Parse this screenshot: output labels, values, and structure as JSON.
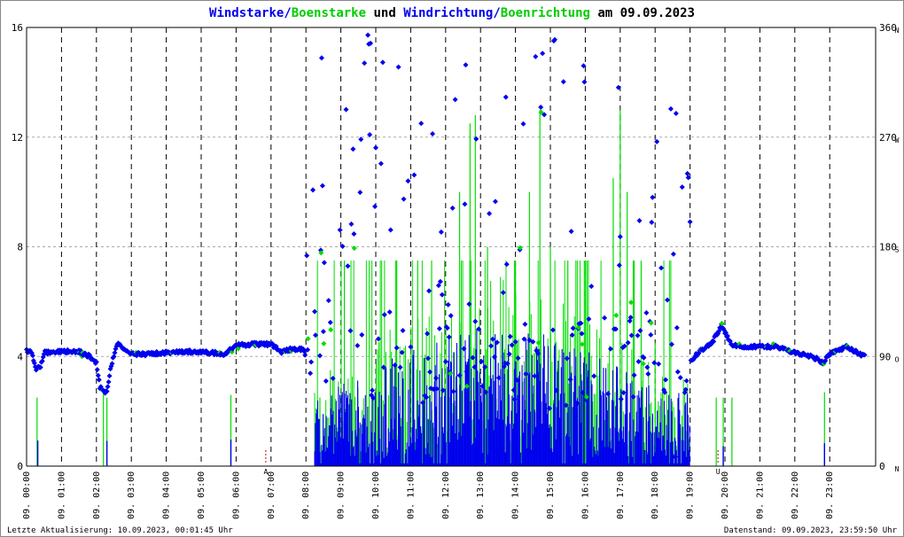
{
  "title": {
    "part1": "Windstarke",
    "slash1": "/",
    "part2": "Boenstarke",
    "part3": " und ",
    "part4": "Windrichtung",
    "slash2": "/",
    "part5": "Boenrichtung",
    "part6": " am 09.09.2023"
  },
  "footer": {
    "left": "Letzte Aktualisierung: 10.09.2023, 00:01:45 Uhr",
    "right": "Datenstand: 09.09.2023, 23:59:50 Uhr"
  },
  "colors": {
    "wind": "#0000ee",
    "gust": "#00dd00",
    "grid": "#000000",
    "marker": "#cc0000"
  },
  "chart_data": {
    "type": "scatter",
    "title": "Windstarke/Boenstarke und Windrichtung/Boenrichtung am 09.09.2023",
    "x_range_hours": [
      0,
      24
    ],
    "y_left_range": [
      0,
      16
    ],
    "y_left_ticks": [
      "0",
      "4",
      "8",
      "12",
      "16"
    ],
    "y_right_range": [
      0,
      360
    ],
    "y_right_ticks": [
      "0",
      "90",
      "180",
      "270",
      "360"
    ],
    "y_right_dir_labels": [
      "N",
      "O",
      "S",
      "W",
      "N"
    ],
    "x_tick_labels": [
      "09. 00:00",
      "09. 01:00",
      "09. 02:00",
      "09. 03:00",
      "09. 04:00",
      "09. 05:00",
      "09. 06:00",
      "09. 07:00",
      "09. 08:00",
      "09. 09:00",
      "09. 10:00",
      "09. 11:00",
      "09. 12:00",
      "09. 13:00",
      "09. 14:00",
      "09. 15:00",
      "09. 16:00",
      "09. 17:00",
      "09. 18:00",
      "09. 19:00",
      "09. 20:00",
      "09. 21:00",
      "09. 22:00",
      "09. 23:00"
    ],
    "event_markers": [
      {
        "hour": 6.85,
        "label": "A"
      },
      {
        "hour": 19.8,
        "label": "U"
      }
    ],
    "direction_profile": [
      [
        0.0,
        95
      ],
      [
        0.15,
        93
      ],
      [
        0.25,
        80
      ],
      [
        0.4,
        82
      ],
      [
        0.5,
        93
      ],
      [
        1.0,
        94
      ],
      [
        1.5,
        94
      ],
      [
        1.8,
        90
      ],
      [
        2.0,
        85
      ],
      [
        2.1,
        65
      ],
      [
        2.3,
        60
      ],
      [
        2.4,
        80
      ],
      [
        2.6,
        100
      ],
      [
        3.0,
        92
      ],
      [
        3.5,
        92
      ],
      [
        4.0,
        93
      ],
      [
        5.0,
        94
      ],
      [
        5.7,
        92
      ],
      [
        5.8,
        95
      ],
      [
        6.0,
        99
      ],
      [
        6.5,
        100
      ],
      [
        7.0,
        100
      ],
      [
        7.3,
        94
      ],
      [
        7.6,
        96
      ],
      [
        7.9,
        96
      ],
      [
        8.2,
        82
      ],
      [
        8.5,
        95
      ],
      [
        9.0,
        100
      ],
      [
        9.5,
        90
      ],
      [
        10.0,
        95
      ],
      [
        11.0,
        85
      ],
      [
        12.0,
        90
      ],
      [
        13.0,
        95
      ],
      [
        14.0,
        90
      ],
      [
        15.0,
        85
      ],
      [
        16.0,
        90
      ],
      [
        17.0,
        90
      ],
      [
        18.0,
        100
      ],
      [
        18.5,
        100
      ],
      [
        18.8,
        80
      ],
      [
        19.0,
        85
      ],
      [
        19.3,
        95
      ],
      [
        19.6,
        100
      ],
      [
        19.9,
        115
      ],
      [
        20.2,
        100
      ],
      [
        20.5,
        98
      ],
      [
        21.0,
        98
      ],
      [
        21.5,
        98
      ],
      [
        22.0,
        93
      ],
      [
        22.5,
        90
      ],
      [
        22.8,
        85
      ],
      [
        23.0,
        92
      ],
      [
        23.5,
        98
      ],
      [
        24.0,
        90
      ]
    ],
    "direction_scatter_window_hours": [
      8.0,
      19.0
    ],
    "gust_spikes": [
      {
        "hour": 0.3,
        "value": 2.5
      },
      {
        "hour": 2.2,
        "value": 2.8
      },
      {
        "hour": 2.3,
        "value": 2.5
      },
      {
        "hour": 5.85,
        "value": 2.6
      },
      {
        "hour": 8.4,
        "value": 2.5
      },
      {
        "hour": 8.7,
        "value": 3.5
      },
      {
        "hour": 9.1,
        "value": 7.5
      },
      {
        "hour": 10.6,
        "value": 7.5
      },
      {
        "hour": 11.2,
        "value": 7.5
      },
      {
        "hour": 11.6,
        "value": 7.5
      },
      {
        "hour": 12.4,
        "value": 10.0
      },
      {
        "hour": 12.7,
        "value": 12.5
      },
      {
        "hour": 12.85,
        "value": 12.8
      },
      {
        "hour": 13.2,
        "value": 8.0
      },
      {
        "hour": 14.0,
        "value": 7.5
      },
      {
        "hour": 14.4,
        "value": 10.0
      },
      {
        "hour": 14.7,
        "value": 13.0
      },
      {
        "hour": 15.0,
        "value": 8.0
      },
      {
        "hour": 15.5,
        "value": 7.5
      },
      {
        "hour": 16.0,
        "value": 7.5
      },
      {
        "hour": 16.8,
        "value": 10.5
      },
      {
        "hour": 17.0,
        "value": 13.0
      },
      {
        "hour": 17.2,
        "value": 10.0
      },
      {
        "hour": 17.4,
        "value": 7.5
      },
      {
        "hour": 17.6,
        "value": 7.5
      },
      {
        "hour": 18.0,
        "value": 4.5
      },
      {
        "hour": 19.75,
        "value": 2.5
      },
      {
        "hour": 19.95,
        "value": 2.5
      },
      {
        "hour": 20.2,
        "value": 2.5
      },
      {
        "hour": 22.85,
        "value": 2.7
      }
    ],
    "series": [
      {
        "name": "Windstarke",
        "color": "#0000ee",
        "kind": "bars",
        "active_window_hours": [
          8.0,
          19.0
        ],
        "typical_max": 5.5
      },
      {
        "name": "Boenstarke",
        "color": "#00dd00",
        "kind": "bars",
        "active_window_hours": [
          8.0,
          19.0
        ],
        "typical_max": 7.5
      },
      {
        "name": "Windrichtung",
        "color": "#0000ee",
        "kind": "points",
        "unit": "deg"
      },
      {
        "name": "Boenrichtung",
        "color": "#00dd00",
        "kind": "points",
        "unit": "deg"
      }
    ],
    "grid": true
  }
}
